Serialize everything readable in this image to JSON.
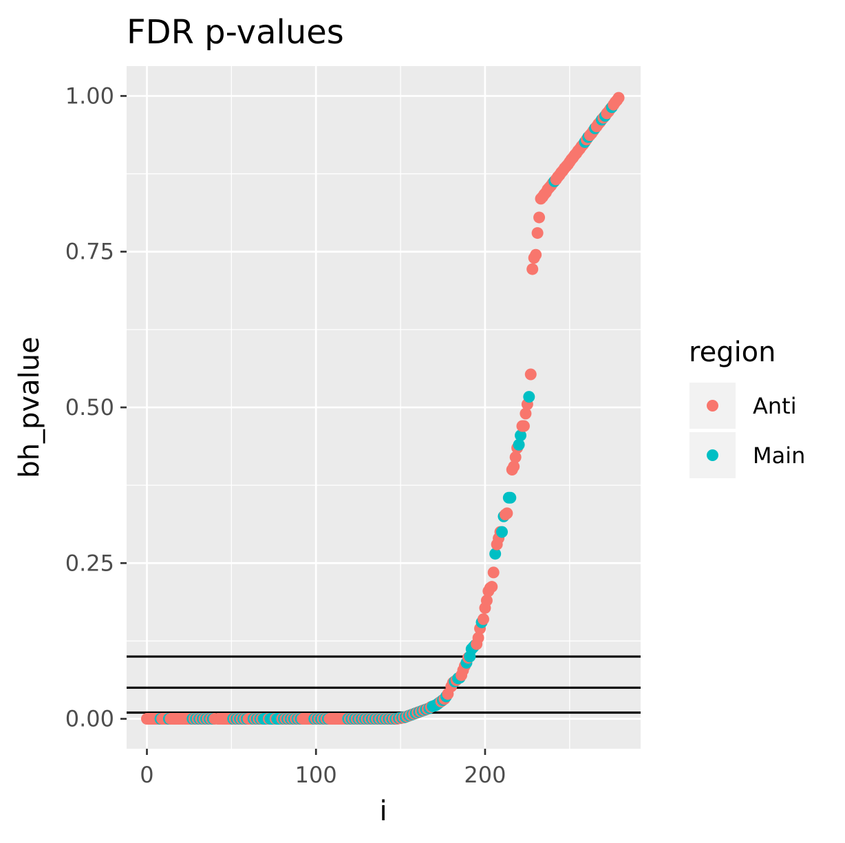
{
  "chart_data": {
    "type": "scatter",
    "title": "FDR p-values",
    "xlabel": "i",
    "ylabel": "bh_pvalue",
    "xlim": [
      -12,
      292
    ],
    "ylim": [
      -0.048,
      1.048
    ],
    "x_ticks": [
      0,
      100,
      200
    ],
    "x_tick_labels": [
      "0",
      "100",
      "200"
    ],
    "y_ticks": [
      0,
      0.25,
      0.5,
      0.75,
      1
    ],
    "y_tick_labels": [
      "0.00",
      "0.25",
      "0.50",
      "0.75",
      "1.00"
    ],
    "grid": true,
    "hlines": [
      0.01,
      0.05,
      0.1
    ],
    "legend": {
      "title": "region",
      "position": "right",
      "entries": [
        {
          "label": "Anti",
          "color": "#F8766D"
        },
        {
          "label": "Main",
          "color": "#00BFC4"
        }
      ]
    },
    "series": [
      {
        "name": "Anti",
        "color": "#F8766D",
        "points": [
          [
            0,
            0
          ],
          [
            1,
            0
          ],
          [
            2,
            0
          ],
          [
            3,
            0
          ],
          [
            4,
            0
          ],
          [
            5,
            0
          ],
          [
            6,
            0
          ],
          [
            7,
            0
          ],
          [
            9,
            0
          ],
          [
            10,
            0
          ],
          [
            11,
            0
          ],
          [
            12,
            0
          ],
          [
            14,
            0
          ],
          [
            15,
            0
          ],
          [
            16,
            0
          ],
          [
            17,
            0
          ],
          [
            18,
            0
          ],
          [
            19,
            0
          ],
          [
            20,
            0
          ],
          [
            21,
            0
          ],
          [
            22,
            0
          ],
          [
            23,
            0
          ],
          [
            24,
            0
          ],
          [
            25,
            0
          ],
          [
            26,
            0
          ],
          [
            28,
            0
          ],
          [
            30,
            0
          ],
          [
            32,
            0
          ],
          [
            34,
            0
          ],
          [
            36,
            0
          ],
          [
            38,
            0
          ],
          [
            40,
            0
          ],
          [
            42,
            0
          ],
          [
            43,
            0
          ],
          [
            44,
            0
          ],
          [
            45,
            0
          ],
          [
            46,
            0
          ],
          [
            47,
            0
          ],
          [
            48,
            0
          ],
          [
            49,
            0
          ],
          [
            50,
            0
          ],
          [
            52,
            0
          ],
          [
            54,
            0
          ],
          [
            56,
            0
          ],
          [
            58,
            0
          ],
          [
            60,
            0
          ],
          [
            61,
            0
          ],
          [
            62,
            0
          ],
          [
            64,
            0
          ],
          [
            66,
            0
          ],
          [
            68,
            0
          ],
          [
            72,
            0
          ],
          [
            76,
            0
          ],
          [
            80,
            0
          ],
          [
            82,
            0
          ],
          [
            84,
            0
          ],
          [
            86,
            0
          ],
          [
            88,
            0
          ],
          [
            90,
            0
          ],
          [
            92,
            0
          ],
          [
            93,
            0
          ],
          [
            94,
            0
          ],
          [
            95,
            0
          ],
          [
            96,
            0
          ],
          [
            97,
            0
          ],
          [
            98,
            0
          ],
          [
            100,
            0
          ],
          [
            102,
            0
          ],
          [
            104,
            0
          ],
          [
            106,
            0
          ],
          [
            108,
            0
          ],
          [
            109,
            0
          ],
          [
            110,
            0
          ],
          [
            111,
            0
          ],
          [
            112,
            0
          ],
          [
            113,
            0
          ],
          [
            114,
            0
          ],
          [
            115,
            0
          ],
          [
            116,
            0
          ],
          [
            117,
            0
          ],
          [
            118,
            0
          ],
          [
            120,
            0
          ],
          [
            122,
            0
          ],
          [
            124,
            0
          ],
          [
            126,
            0
          ],
          [
            128,
            0
          ],
          [
            130,
            0
          ],
          [
            132,
            0
          ],
          [
            134,
            0
          ],
          [
            136,
            0
          ],
          [
            138,
            0
          ],
          [
            140,
            0
          ],
          [
            142,
            0
          ],
          [
            144,
            0
          ],
          [
            146,
            0
          ],
          [
            148,
            0
          ],
          [
            150,
            0.001
          ],
          [
            152,
            0.002
          ],
          [
            154,
            0.004
          ],
          [
            156,
            0.006
          ],
          [
            158,
            0.008
          ],
          [
            160,
            0.01
          ],
          [
            162,
            0.012
          ],
          [
            164,
            0.014
          ],
          [
            166,
            0.016
          ],
          [
            168,
            0.019
          ],
          [
            174,
            0.028
          ],
          [
            176,
            0.032
          ],
          [
            178,
            0.04
          ],
          [
            180,
            0.052
          ],
          [
            181,
            0.058
          ],
          [
            183,
            0.062
          ],
          [
            186,
            0.07
          ],
          [
            187,
            0.078
          ],
          [
            188,
            0.085
          ],
          [
            190,
            0.098
          ],
          [
            195,
            0.12
          ],
          [
            196,
            0.13
          ],
          [
            197,
            0.145
          ],
          [
            199,
            0.16
          ],
          [
            200,
            0.178
          ],
          [
            201,
            0.19
          ],
          [
            202,
            0.205
          ],
          [
            203,
            0.21
          ],
          [
            204,
            0.212
          ],
          [
            205,
            0.235
          ],
          [
            207,
            0.28
          ],
          [
            208,
            0.29
          ],
          [
            209,
            0.3
          ],
          [
            212,
            0.328
          ],
          [
            213,
            0.33
          ],
          [
            216,
            0.4
          ],
          [
            217,
            0.405
          ],
          [
            218,
            0.42
          ],
          [
            219,
            0.435
          ],
          [
            222,
            0.47
          ],
          [
            223,
            0.47
          ],
          [
            224,
            0.49
          ],
          [
            225,
            0.505
          ],
          [
            227,
            0.553
          ],
          [
            228,
            0.722
          ],
          [
            229,
            0.74
          ],
          [
            230,
            0.745
          ],
          [
            231,
            0.78
          ],
          [
            232,
            0.805
          ],
          [
            233,
            0.835
          ],
          [
            234,
            0.838
          ],
          [
            235,
            0.842
          ],
          [
            236,
            0.845
          ],
          [
            237,
            0.85
          ],
          [
            238,
            0.853
          ],
          [
            239,
            0.856
          ],
          [
            240,
            0.86
          ],
          [
            242,
            0.866
          ],
          [
            243,
            0.87
          ],
          [
            244,
            0.873
          ],
          [
            245,
            0.877
          ],
          [
            246,
            0.88
          ],
          [
            247,
            0.884
          ],
          [
            248,
            0.887
          ],
          [
            249,
            0.89
          ],
          [
            250,
            0.894
          ],
          [
            251,
            0.898
          ],
          [
            252,
            0.901
          ],
          [
            253,
            0.905
          ],
          [
            254,
            0.908
          ],
          [
            255,
            0.912
          ],
          [
            256,
            0.915
          ],
          [
            257,
            0.919
          ],
          [
            258,
            0.922
          ],
          [
            260,
            0.93
          ],
          [
            262,
            0.937
          ],
          [
            263,
            0.94
          ],
          [
            264,
            0.944
          ],
          [
            266,
            0.951
          ],
          [
            267,
            0.955
          ],
          [
            268,
            0.958
          ],
          [
            270,
            0.965
          ],
          [
            272,
            0.972
          ],
          [
            273,
            0.975
          ],
          [
            274,
            0.979
          ],
          [
            276,
            0.986
          ],
          [
            277,
            0.99
          ],
          [
            278,
            0.993
          ],
          [
            279,
            0.997
          ]
        ]
      },
      {
        "name": "Main",
        "color": "#00BFC4",
        "points": [
          [
            8,
            0
          ],
          [
            13,
            0
          ],
          [
            27,
            0
          ],
          [
            29,
            0
          ],
          [
            31,
            0
          ],
          [
            33,
            0
          ],
          [
            35,
            0
          ],
          [
            37,
            0
          ],
          [
            39,
            0
          ],
          [
            51,
            0
          ],
          [
            53,
            0
          ],
          [
            55,
            0
          ],
          [
            57,
            0
          ],
          [
            59,
            0
          ],
          [
            63,
            0
          ],
          [
            65,
            0
          ],
          [
            67,
            0
          ],
          [
            69,
            0
          ],
          [
            70,
            0
          ],
          [
            71,
            0
          ],
          [
            73,
            0
          ],
          [
            74,
            0
          ],
          [
            75,
            0
          ],
          [
            77,
            0
          ],
          [
            78,
            0
          ],
          [
            79,
            0
          ],
          [
            81,
            0
          ],
          [
            83,
            0
          ],
          [
            85,
            0
          ],
          [
            87,
            0
          ],
          [
            89,
            0
          ],
          [
            91,
            0
          ],
          [
            99,
            0
          ],
          [
            101,
            0
          ],
          [
            103,
            0
          ],
          [
            105,
            0
          ],
          [
            107,
            0
          ],
          [
            119,
            0
          ],
          [
            121,
            0
          ],
          [
            123,
            0
          ],
          [
            125,
            0
          ],
          [
            127,
            0
          ],
          [
            129,
            0
          ],
          [
            131,
            0
          ],
          [
            133,
            0
          ],
          [
            135,
            0
          ],
          [
            137,
            0
          ],
          [
            139,
            0
          ],
          [
            141,
            0
          ],
          [
            143,
            0
          ],
          [
            145,
            0
          ],
          [
            147,
            0
          ],
          [
            149,
            0.001
          ],
          [
            151,
            0.002
          ],
          [
            153,
            0.003
          ],
          [
            155,
            0.005
          ],
          [
            157,
            0.007
          ],
          [
            159,
            0.009
          ],
          [
            161,
            0.011
          ],
          [
            163,
            0.013
          ],
          [
            165,
            0.015
          ],
          [
            167,
            0.017
          ],
          [
            169,
            0.02
          ],
          [
            170,
            0.021
          ],
          [
            171,
            0.022
          ],
          [
            172,
            0.024
          ],
          [
            173,
            0.026
          ],
          [
            175,
            0.03
          ],
          [
            177,
            0.036
          ],
          [
            182,
            0.06
          ],
          [
            184,
            0.065
          ],
          [
            185,
            0.066
          ],
          [
            189,
            0.09
          ],
          [
            191,
            0.1
          ],
          [
            192,
            0.112
          ],
          [
            193,
            0.115
          ],
          [
            194,
            0.118
          ],
          [
            198,
            0.155
          ],
          [
            206,
            0.265
          ],
          [
            210,
            0.3
          ],
          [
            211,
            0.325
          ],
          [
            214,
            0.355
          ],
          [
            215,
            0.355
          ],
          [
            220,
            0.44
          ],
          [
            221,
            0.455
          ],
          [
            226,
            0.517
          ],
          [
            241,
            0.863
          ],
          [
            259,
            0.926
          ],
          [
            261,
            0.934
          ],
          [
            265,
            0.948
          ],
          [
            269,
            0.962
          ],
          [
            271,
            0.968
          ],
          [
            275,
            0.982
          ]
        ]
      }
    ]
  }
}
